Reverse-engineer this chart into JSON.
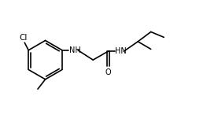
{
  "bg_color": "#ffffff",
  "line_color": "#000000",
  "text_color": "#000000",
  "lw": 1.2,
  "font_size": 7.0,
  "fig_width": 2.77,
  "fig_height": 1.55,
  "dpi": 100,
  "xlim": [
    0,
    10
  ],
  "ylim": [
    0,
    5.6
  ]
}
